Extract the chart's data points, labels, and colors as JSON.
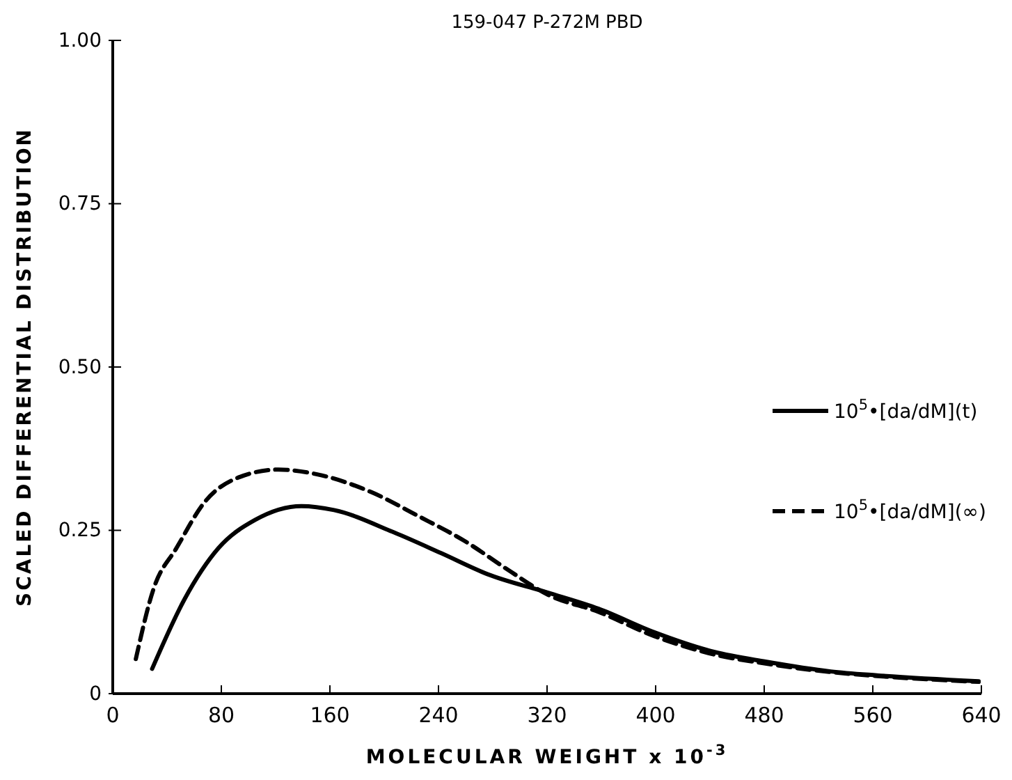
{
  "chart_data": {
    "type": "line",
    "title": "159-047 P-272M PBD",
    "xlabel": "MOLECULAR WEIGHT x 10$^{-3}$",
    "ylabel": "SCALED DIFFERENTIAL DISTRIBUTION",
    "xlim": [
      0,
      640
    ],
    "xticks": [
      0,
      80,
      160,
      240,
      320,
      400,
      480,
      560,
      640
    ],
    "ylim": [
      0,
      1
    ],
    "yticks": [
      0,
      0.25,
      {
        "value": 0.5,
        "label": "0.50"
      },
      0.75,
      {
        "value": 1,
        "label": "1.00"
      }
    ],
    "grid": false,
    "legend": "right",
    "marker": "none",
    "series": [
      {
        "name": "10$^{5}$•[da/dM](t)",
        "color": "#000000",
        "line_style": "solid",
        "x": [
          29,
          53,
          78,
          105,
          139,
          163,
          207,
          242,
          276,
          320,
          358,
          399,
          443,
          481,
          529,
          563,
          638
        ],
        "values": [
          0.038,
          0.145,
          0.223,
          0.266,
          0.287,
          0.281,
          0.247,
          0.215,
          0.183,
          0.155,
          0.13,
          0.094,
          0.064,
          0.049,
          0.034,
          0.028,
          0.019
        ]
      },
      {
        "name": "10$^{5}$•[da/dM](∞)",
        "color": "#000000",
        "line_style": "dashed",
        "x": [
          17,
          30,
          47,
          68,
          94,
          122,
          150,
          191,
          225,
          259,
          293,
          320,
          358,
          399,
          443,
          481,
          529,
          563,
          638
        ],
        "values": [
          0.053,
          0.16,
          0.223,
          0.294,
          0.332,
          0.343,
          0.336,
          0.308,
          0.272,
          0.234,
          0.187,
          0.152,
          0.125,
          0.088,
          0.06,
          0.046,
          0.033,
          0.027,
          0.018
        ]
      }
    ]
  }
}
